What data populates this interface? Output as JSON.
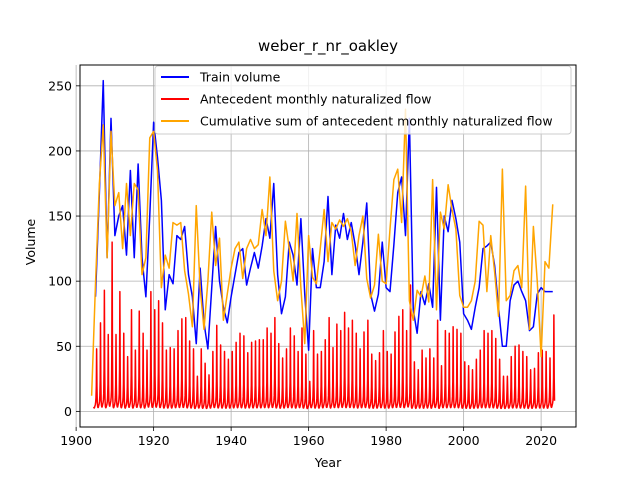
{
  "chart_data": {
    "type": "line",
    "title": "weber_r_nr_oakley",
    "xlabel": "Year",
    "ylabel": "Volume",
    "xlim": [
      1901,
      2029
    ],
    "ylim": [
      -12,
      266
    ],
    "xticks": [
      1900,
      1920,
      1940,
      1960,
      1980,
      2000,
      2020
    ],
    "yticks": [
      0,
      50,
      100,
      150,
      200,
      250
    ],
    "grid": true,
    "legend": {
      "placement": "top-right"
    },
    "series": [
      {
        "name": "Train volume",
        "color": "#0000ff",
        "x": [
          1905,
          1906,
          1907,
          1908,
          1909,
          1910,
          1911,
          1912,
          1913,
          1914,
          1915,
          1916,
          1917,
          1918,
          1919,
          1920,
          1921,
          1922,
          1923,
          1924,
          1925,
          1926,
          1927,
          1928,
          1929,
          1930,
          1931,
          1932,
          1933,
          1934,
          1935,
          1936,
          1937,
          1938,
          1939,
          1940,
          1941,
          1942,
          1943,
          1944,
          1945,
          1946,
          1947,
          1948,
          1949,
          1950,
          1951,
          1952,
          1953,
          1954,
          1955,
          1956,
          1957,
          1958,
          1959,
          1960,
          1961,
          1962,
          1963,
          1964,
          1965,
          1966,
          1967,
          1968,
          1969,
          1970,
          1971,
          1972,
          1973,
          1974,
          1975,
          1976,
          1977,
          1978,
          1979,
          1980,
          1981,
          1982,
          1983,
          1984,
          1985,
          1986,
          1987,
          1988,
          1989,
          1990,
          1991,
          1992,
          1993,
          1994,
          1995,
          1996,
          1997,
          1998,
          1999,
          2000,
          2001,
          2002,
          2003,
          2004,
          2005,
          2006,
          2007,
          2008,
          2009,
          2010,
          2011,
          2012,
          2013,
          2014,
          2015,
          2016,
          2017,
          2018,
          2019,
          2020,
          2021,
          2022,
          2023
        ],
        "y": [
          88,
          168,
          254,
          118,
          225,
          135,
          150,
          158,
          120,
          185,
          118,
          190,
          118,
          88,
          150,
          222,
          195,
          162,
          78,
          105,
          98,
          135,
          132,
          142,
          105,
          88,
          52,
          110,
          68,
          48,
          95,
          142,
          100,
          80,
          68,
          88,
          105,
          122,
          125,
          97,
          110,
          122,
          110,
          127,
          148,
          133,
          175,
          105,
          75,
          88,
          130,
          120,
          97,
          148,
          90,
          47,
          125,
          95,
          95,
          115,
          165,
          105,
          143,
          133,
          152,
          132,
          145,
          128,
          105,
          130,
          160,
          90,
          77,
          90,
          130,
          95,
          92,
          128,
          168,
          180,
          135,
          225,
          78,
          60,
          92,
          82,
          98,
          80,
          172,
          70,
          150,
          138,
          162,
          148,
          130,
          75,
          70,
          63,
          80,
          95,
          125,
          127,
          130,
          112,
          80,
          50,
          50,
          85,
          97,
          100,
          92,
          85,
          62,
          65,
          90,
          95,
          92,
          92,
          92
        ]
      },
      {
        "name": "Antecedent monthly naturalized flow",
        "color": "#ff0000",
        "x": [
          1905,
          1906,
          1907,
          1908,
          1909,
          1910,
          1911,
          1912,
          1913,
          1914,
          1915,
          1916,
          1917,
          1918,
          1919,
          1920,
          1921,
          1922,
          1923,
          1924,
          1925,
          1926,
          1927,
          1928,
          1929,
          1930,
          1931,
          1932,
          1933,
          1934,
          1935,
          1936,
          1937,
          1938,
          1939,
          1940,
          1941,
          1942,
          1943,
          1944,
          1945,
          1946,
          1947,
          1948,
          1949,
          1950,
          1951,
          1952,
          1953,
          1954,
          1955,
          1956,
          1957,
          1958,
          1959,
          1960,
          1961,
          1962,
          1963,
          1964,
          1965,
          1966,
          1967,
          1968,
          1969,
          1970,
          1971,
          1972,
          1973,
          1974,
          1975,
          1976,
          1977,
          1978,
          1979,
          1980,
          1981,
          1982,
          1983,
          1984,
          1985,
          1986,
          1987,
          1988,
          1989,
          1990,
          1991,
          1992,
          1993,
          1994,
          1995,
          1996,
          1997,
          1998,
          1999,
          2000,
          2001,
          2002,
          2003,
          2004,
          2005,
          2006,
          2007,
          2008,
          2009,
          2010,
          2011,
          2012,
          2013,
          2014,
          2015,
          2016,
          2017,
          2018,
          2019,
          2020,
          2021,
          2022,
          2023
        ],
        "y": [
          48,
          68,
          93,
          59,
          130,
          59,
          92,
          60,
          42,
          78,
          47,
          77,
          60,
          47,
          92,
          78,
          85,
          68,
          47,
          49,
          48,
          62,
          71,
          72,
          54,
          48,
          27,
          48,
          37,
          28,
          46,
          66,
          51,
          46,
          40,
          46,
          53,
          60,
          58,
          45,
          53,
          54,
          55,
          55,
          64,
          60,
          72,
          52,
          41,
          48,
          64,
          58,
          46,
          64,
          44,
          23,
          62,
          44,
          46,
          55,
          72,
          49,
          67,
          62,
          76,
          64,
          70,
          60,
          48,
          61,
          70,
          44,
          39,
          45,
          62,
          46,
          44,
          61,
          73,
          78,
          62,
          97,
          38,
          32,
          47,
          41,
          48,
          41,
          70,
          35,
          62,
          60,
          65,
          63,
          60,
          38,
          35,
          32,
          40,
          47,
          62,
          60,
          62,
          56,
          40,
          27,
          27,
          42,
          50,
          51,
          46,
          42,
          32,
          33,
          45,
          47,
          46,
          41,
          74
        ]
      },
      {
        "name": "Cumulative sum of antecedent monthly naturalized flow",
        "color": "#ffa500",
        "x": [
          1904,
          1905,
          1906,
          1907,
          1908,
          1909,
          1910,
          1911,
          1912,
          1913,
          1914,
          1915,
          1916,
          1917,
          1918,
          1919,
          1920,
          1921,
          1922,
          1923,
          1924,
          1925,
          1926,
          1927,
          1928,
          1929,
          1930,
          1931,
          1932,
          1933,
          1934,
          1935,
          1936,
          1937,
          1938,
          1939,
          1940,
          1941,
          1942,
          1943,
          1944,
          1945,
          1946,
          1947,
          1948,
          1949,
          1950,
          1951,
          1952,
          1953,
          1954,
          1955,
          1956,
          1957,
          1958,
          1959,
          1960,
          1961,
          1962,
          1963,
          1964,
          1965,
          1966,
          1967,
          1968,
          1969,
          1970,
          1971,
          1972,
          1973,
          1974,
          1975,
          1976,
          1977,
          1978,
          1979,
          1980,
          1981,
          1982,
          1983,
          1984,
          1985,
          1986,
          1987,
          1988,
          1989,
          1990,
          1991,
          1992,
          1993,
          1994,
          1995,
          1996,
          1997,
          1998,
          1999,
          2000,
          2001,
          2002,
          2003,
          2004,
          2005,
          2006,
          2007,
          2008,
          2009,
          2010,
          2011,
          2012,
          2013,
          2014,
          2015,
          2016,
          2017,
          2018,
          2019,
          2020,
          2021,
          2022,
          2023
        ],
        "y": [
          12,
          98,
          175,
          220,
          118,
          215,
          158,
          168,
          125,
          175,
          135,
          175,
          170,
          105,
          118,
          210,
          215,
          185,
          95,
          120,
          110,
          145,
          143,
          145,
          108,
          90,
          65,
          158,
          95,
          63,
          100,
          153,
          112,
          133,
          70,
          90,
          110,
          125,
          130,
          102,
          125,
          132,
          125,
          128,
          155,
          135,
          180,
          108,
          85,
          100,
          146,
          125,
          100,
          152,
          95,
          52,
          135,
          103,
          98,
          125,
          155,
          115,
          145,
          140,
          147,
          142,
          148,
          138,
          112,
          135,
          150,
          102,
          87,
          97,
          136,
          100,
          98,
          140,
          178,
          186,
          145,
          232,
          85,
          70,
          93,
          88,
          104,
          84,
          178,
          78,
          153,
          140,
          174,
          155,
          140,
          89,
          80,
          80,
          85,
          100,
          146,
          143,
          92,
          135,
          107,
          73,
          186,
          85,
          89,
          108,
          112,
          95,
          173,
          63,
          142,
          100,
          42,
          115,
          110,
          159
        ]
      }
    ]
  }
}
